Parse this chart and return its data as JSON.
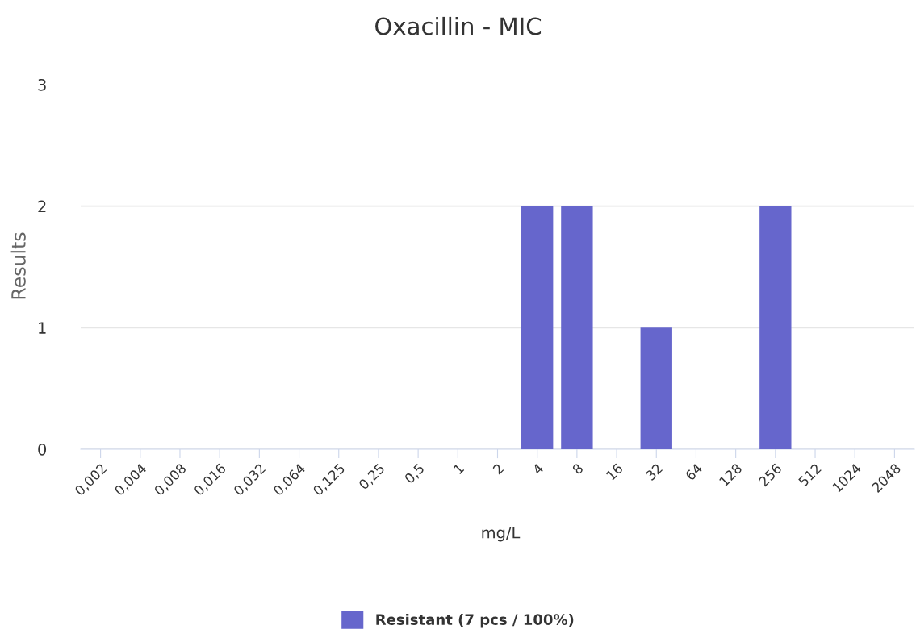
{
  "chart_data": {
    "type": "bar",
    "title": "Oxacillin - MIC",
    "xlabel": "mg/L",
    "ylabel": "Results",
    "categories": [
      "0,002",
      "0,004",
      "0,008",
      "0,016",
      "0,032",
      "0,064",
      "0,125",
      "0,25",
      "0,5",
      "1",
      "2",
      "4",
      "8",
      "16",
      "32",
      "64",
      "128",
      "256",
      "512",
      "1024",
      "2048"
    ],
    "series": [
      {
        "name": "Resistant (7 pcs / 100%)",
        "color": "#6666cc",
        "values": [
          0,
          0,
          0,
          0,
          0,
          0,
          0,
          0,
          0,
          0,
          0,
          2,
          2,
          0,
          1,
          0,
          0,
          2,
          0,
          0,
          0
        ]
      }
    ],
    "ylim": [
      0,
      3
    ],
    "yticks": [
      0,
      1,
      2,
      3
    ],
    "grid": "y",
    "legend": "bottom"
  }
}
